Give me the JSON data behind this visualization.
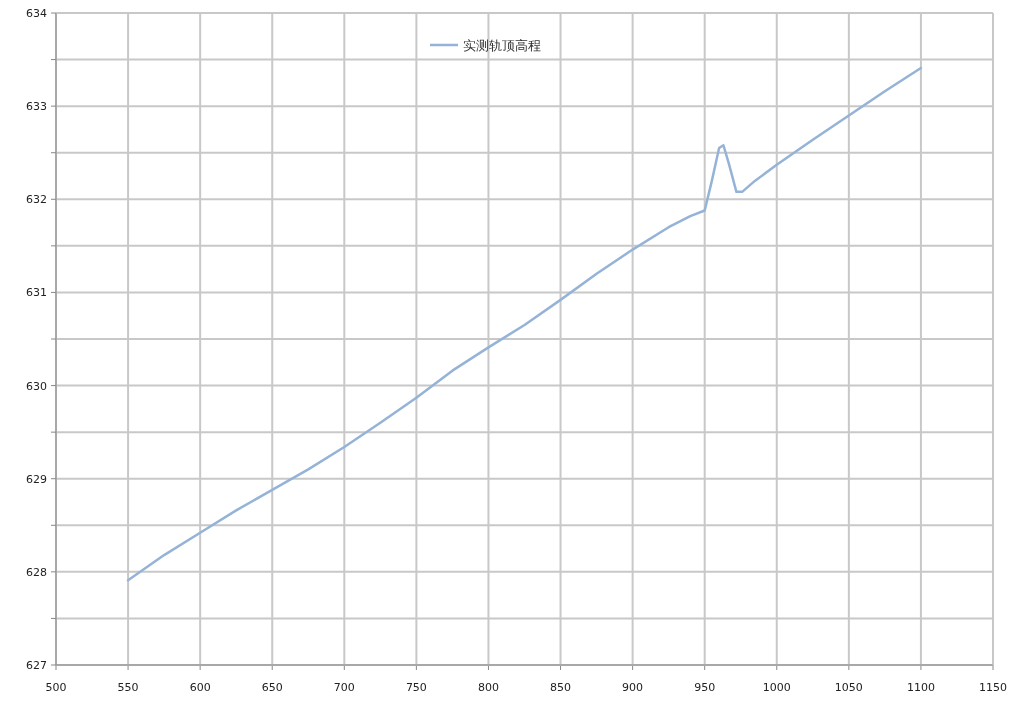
{
  "chart_data": {
    "type": "line",
    "x": [
      550,
      575,
      600,
      625,
      650,
      675,
      700,
      725,
      750,
      775,
      800,
      825,
      850,
      875,
      900,
      925,
      940,
      950,
      955,
      960,
      963,
      967,
      972,
      976,
      985,
      1000,
      1025,
      1050,
      1075,
      1100
    ],
    "series": [
      {
        "name": "实测轨顶高程",
        "color": "#95b3d7",
        "values": [
          627.91,
          628.18,
          628.42,
          628.66,
          628.88,
          629.1,
          629.34,
          629.6,
          629.87,
          630.16,
          630.41,
          630.65,
          630.92,
          631.2,
          631.46,
          631.7,
          631.82,
          631.88,
          632.2,
          632.55,
          632.58,
          632.37,
          632.08,
          632.08,
          632.2,
          632.37,
          632.64,
          632.9,
          633.16,
          633.41
        ]
      }
    ],
    "xlim": [
      500,
      1150
    ],
    "xticks": [
      500,
      550,
      600,
      650,
      700,
      750,
      800,
      850,
      900,
      950,
      1000,
      1050,
      1100,
      1150
    ],
    "ylim": [
      627,
      634
    ],
    "yticks": [
      627,
      {
        "value": 627.5,
        "label": null
      },
      628,
      {
        "value": 628.5,
        "label": null
      },
      629,
      {
        "value": 629.5,
        "label": null
      },
      630,
      {
        "value": 630.5,
        "label": null
      },
      631,
      {
        "value": 631.5,
        "label": null
      },
      632,
      {
        "value": 632.5,
        "label": null
      },
      633,
      {
        "value": 633.5,
        "label": null
      },
      634
    ],
    "grid": true,
    "legend": "top",
    "marker": "none",
    "line_style": "solid"
  }
}
